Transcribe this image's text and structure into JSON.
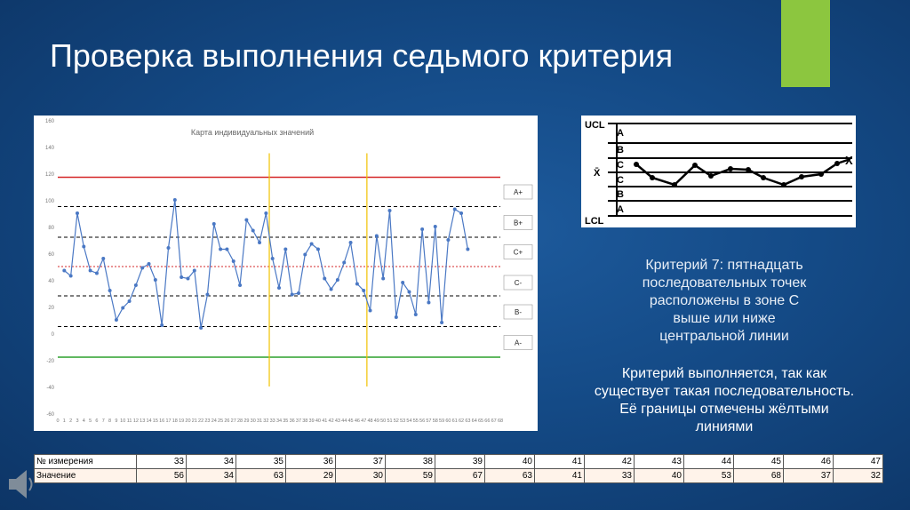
{
  "title": "Проверка выполнения седьмого критерия",
  "chart_data": {
    "type": "line",
    "title": "Карта индивидуальных значений",
    "ylim": [
      -60,
      160
    ],
    "yticks": [
      -60,
      -40,
      -20,
      0,
      20,
      40,
      60,
      80,
      100,
      120,
      140,
      160
    ],
    "xlim": [
      0,
      68
    ],
    "xticks": [
      0,
      1,
      2,
      3,
      4,
      5,
      6,
      7,
      8,
      9,
      10,
      11,
      12,
      13,
      14,
      15,
      16,
      17,
      18,
      19,
      20,
      21,
      22,
      23,
      24,
      25,
      26,
      27,
      28,
      29,
      30,
      31,
      32,
      33,
      34,
      35,
      36,
      37,
      38,
      39,
      40,
      41,
      42,
      43,
      44,
      45,
      46,
      47,
      48,
      49,
      50,
      51,
      52,
      53,
      54,
      55,
      56,
      57,
      58,
      59,
      60,
      61,
      62,
      63,
      64,
      65,
      66,
      67,
      68
    ],
    "series": [
      {
        "x": [
          1,
          2,
          3,
          4,
          5,
          6,
          7,
          8,
          9,
          10,
          11,
          12,
          13,
          14,
          15,
          16,
          17,
          18,
          19,
          20,
          21,
          22,
          23,
          24,
          25,
          26,
          27,
          28,
          29,
          30,
          31,
          32,
          33,
          34,
          35,
          36,
          37,
          38,
          39,
          40,
          41,
          42,
          43,
          44,
          45,
          46,
          47,
          48,
          49,
          50,
          51,
          52,
          53,
          54,
          55,
          56,
          57,
          58,
          59,
          60,
          61,
          62,
          63
        ],
        "values": [
          47,
          43,
          90,
          65,
          47,
          45,
          56,
          32,
          10,
          19,
          24,
          36,
          49,
          52,
          40,
          6,
          64,
          100,
          42,
          41,
          47,
          4,
          29,
          82,
          63,
          63,
          54,
          36,
          85,
          77,
          68,
          90,
          56,
          34,
          63,
          29,
          30,
          59,
          67,
          63,
          41,
          33,
          40,
          53,
          68,
          37,
          32,
          17,
          73,
          41,
          92,
          12,
          38,
          31,
          14,
          78,
          23,
          80,
          8,
          70,
          93,
          90,
          63
        ]
      }
    ],
    "lines": [
      {
        "y": 117,
        "color": "#d62728",
        "style": "solid"
      },
      {
        "y": 95,
        "color": "#000000",
        "style": "dashed"
      },
      {
        "y": 72,
        "color": "#000000",
        "style": "dashed"
      },
      {
        "y": 50,
        "color": "#d62728",
        "style": "dotted"
      },
      {
        "y": 28,
        "color": "#000000",
        "style": "dashed"
      },
      {
        "y": 5,
        "color": "#000000",
        "style": "dashed"
      },
      {
        "y": -18,
        "color": "#2ca02c",
        "style": "solid"
      }
    ],
    "yellow_lines_x": [
      32.5,
      47.5
    ],
    "zone_labels": [
      {
        "label": "A+",
        "y": 106
      },
      {
        "label": "B+",
        "y": 83
      },
      {
        "label": "C+",
        "y": 61
      },
      {
        "label": "C-",
        "y": 38
      },
      {
        "label": "B-",
        "y": 16
      },
      {
        "label": "A-",
        "y": -7
      }
    ]
  },
  "mini_chart": {
    "labels_left": [
      "UCL",
      "A",
      "B",
      "C",
      "X̄",
      "C",
      "B",
      "A",
      "LCL"
    ],
    "label_right": "X"
  },
  "criterion_text": "Критерий 7: пятнадцать последовательных точек расположены в зоне С выше или ниже центральной линии",
  "criterion_lines": [
    "Критерий 7: пятнадцать",
    "последовательных точек",
    "расположены в зоне С",
    "выше или ниже",
    "центральной линии"
  ],
  "result_lines": [
    "Критерий выполняется, так как",
    "существует такая последовательность.",
    "Её границы отмечены жёлтыми",
    "линиями"
  ],
  "table": {
    "rows": [
      {
        "header": "№ измерения",
        "cells": [
          "33",
          "34",
          "35",
          "36",
          "37",
          "38",
          "39",
          "40",
          "41",
          "42",
          "43",
          "44",
          "45",
          "46",
          "47"
        ]
      },
      {
        "header": "Значение",
        "cells": [
          "56",
          "34",
          "63",
          "29",
          "30",
          "59",
          "67",
          "63",
          "41",
          "33",
          "40",
          "53",
          "68",
          "37",
          "32"
        ]
      }
    ]
  },
  "colors": {
    "accent_green": "#8cc63f",
    "series": "#4a78c4",
    "ucl": "#d62728",
    "lcl": "#2ca02c",
    "bounds": "#f2c200"
  }
}
